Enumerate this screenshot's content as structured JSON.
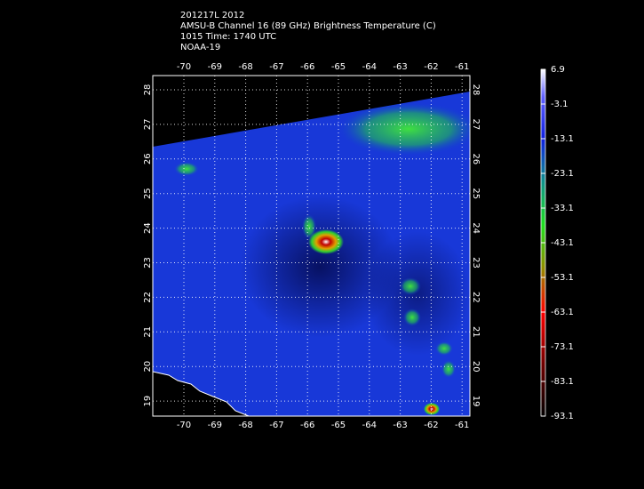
{
  "header": {
    "lines": [
      "201217L 2012",
      "AMSU-B Channel 16 (89 GHz) Brightness Temperature (C)",
      "1015 Time: 1740 UTC",
      "NOAA-19"
    ]
  },
  "map": {
    "lon_labels": [
      "-70",
      "-69",
      "-68",
      "-67",
      "-66",
      "-65",
      "-64",
      "-63",
      "-62",
      "-61"
    ],
    "lat_labels": [
      "28",
      "27",
      "26",
      "25",
      "24",
      "23",
      "22",
      "21",
      "20",
      "19"
    ]
  },
  "colorbar": {
    "labels": [
      "6.9",
      "-3.1",
      "-13.1",
      "-23.1",
      "-33.1",
      "-43.1",
      "-53.1",
      "-63.1",
      "-73.1",
      "-83.1",
      "-93.1"
    ]
  }
}
